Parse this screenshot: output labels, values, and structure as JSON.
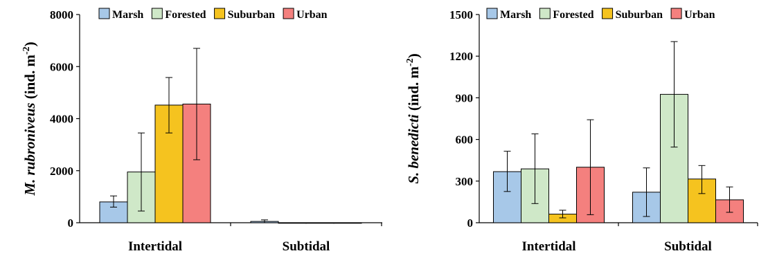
{
  "chart_data": [
    {
      "type": "bar",
      "categories": [
        "Intertidal",
        "Subtidal"
      ],
      "ylabel_species": "M. rubroniveus",
      "ylabel_unit_prefix": " (ind. m",
      "ylabel_exponent": "-2",
      "ylabel_unit_suffix": ")",
      "ylim": [
        0,
        8000
      ],
      "yticks": [
        0,
        2000,
        4000,
        6000,
        8000
      ],
      "grid": false,
      "legend_position": "top",
      "series": [
        {
          "name": "Marsh",
          "color": "#a7c8e8",
          "values": [
            800,
            50
          ],
          "err_low": [
            600,
            0
          ],
          "err_high": [
            1030,
            110
          ]
        },
        {
          "name": "Forested",
          "color": "#cfe8c8",
          "values": [
            1950,
            0
          ],
          "err_low": [
            450,
            0
          ],
          "err_high": [
            3450,
            0
          ]
        },
        {
          "name": "Suburban",
          "color": "#f5c31f",
          "values": [
            4520,
            0
          ],
          "err_low": [
            3450,
            0
          ],
          "err_high": [
            5580,
            0
          ]
        },
        {
          "name": "Urban",
          "color": "#f4807e",
          "values": [
            4560,
            0
          ],
          "err_low": [
            2420,
            0
          ],
          "err_high": [
            6700,
            0
          ]
        }
      ]
    },
    {
      "type": "bar",
      "categories": [
        "Intertidal",
        "Subtidal"
      ],
      "ylabel_species": "S. benedicti",
      "ylabel_unit_prefix": " (ind. m",
      "ylabel_exponent": "-2",
      "ylabel_unit_suffix": ")",
      "ylim": [
        0,
        1500
      ],
      "yticks": [
        0,
        300,
        600,
        900,
        1200,
        1500
      ],
      "grid": false,
      "legend_position": "top",
      "series": [
        {
          "name": "Marsh",
          "color": "#a7c8e8",
          "values": [
            368,
            220
          ],
          "err_low": [
            225,
            45
          ],
          "err_high": [
            515,
            395
          ]
        },
        {
          "name": "Forested",
          "color": "#cfe8c8",
          "values": [
            388,
            925
          ],
          "err_low": [
            138,
            545
          ],
          "err_high": [
            640,
            1305
          ]
        },
        {
          "name": "Suburban",
          "color": "#f5c31f",
          "values": [
            62,
            315
          ],
          "err_low": [
            35,
            210
          ],
          "err_high": [
            90,
            412
          ]
        },
        {
          "name": "Urban",
          "color": "#f4807e",
          "values": [
            400,
            165
          ],
          "err_low": [
            58,
            75
          ],
          "err_high": [
            742,
            258
          ]
        }
      ]
    }
  ]
}
